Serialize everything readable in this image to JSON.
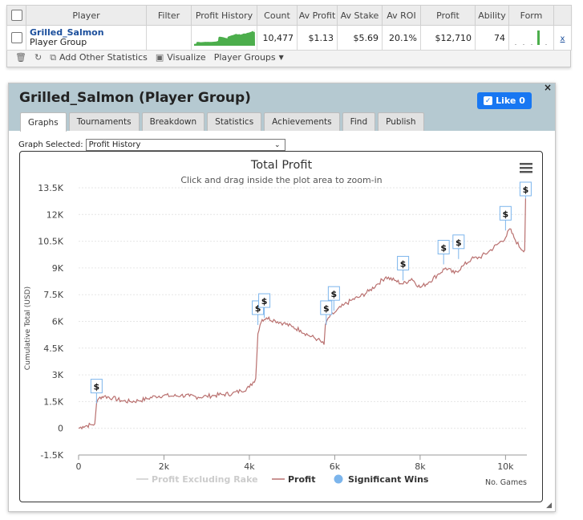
{
  "table": {
    "headers": [
      "Player",
      "Filter",
      "Profit History",
      "Count",
      "Av Profit",
      "Av Stake",
      "Av ROI",
      "Profit",
      "Ability",
      "Form"
    ],
    "row": {
      "player_name": "Grilled_Salmon",
      "player_type": "Player Group",
      "count": "10,477",
      "av_profit": "$1.13",
      "av_stake": "$5.69",
      "av_roi": "20.1%",
      "profit": "$12,710",
      "ability": "74",
      "remove": "x"
    },
    "toolbar": {
      "add_stats": "Add Other Statistics",
      "visualize": "Visualize",
      "player_groups": "Player Groups"
    }
  },
  "panel": {
    "title": "Grilled_Salmon (Player Group)",
    "like_label": "Like 0",
    "close": "×",
    "tabs": [
      "Graphs",
      "Tournaments",
      "Breakdown",
      "Statistics",
      "Achievements",
      "Find",
      "Publish"
    ],
    "active_tab": "Graphs",
    "graph_selected_label": "Graph Selected:",
    "graph_selected_value": "Profit History"
  },
  "chart_data": {
    "type": "line",
    "title": "Total Profit",
    "subtitle": "Click and drag inside the plot area to zoom-in",
    "ylabel": "Cumulative Total (USD)",
    "xlabel": "No. Games",
    "xlim": [
      0,
      10500
    ],
    "ylim": [
      -1500,
      13500
    ],
    "x_ticks": [
      0,
      2000,
      4000,
      6000,
      8000,
      10000
    ],
    "x_tick_labels": [
      "0",
      "2k",
      "4k",
      "6k",
      "8k",
      "10k"
    ],
    "y_ticks": [
      -1500,
      0,
      1500,
      3000,
      4500,
      6000,
      7500,
      9000,
      10500,
      12000,
      13500
    ],
    "y_tick_labels": [
      "-1.5K",
      "0",
      "1.5K",
      "3K",
      "4.5K",
      "6K",
      "7.5K",
      "9K",
      "10.5K",
      "12K",
      "13.5K"
    ],
    "legend": [
      "Profit Excluding Rake",
      "Profit",
      "Significant Wins"
    ],
    "legend_placement": "bottom",
    "grid": true,
    "colors": {
      "profit": "#b9706f",
      "excluding_rake": "#cccccc",
      "significant": "#7cb5ec",
      "flag_border": "#7cb5ec"
    },
    "series": [
      {
        "name": "Profit",
        "points": [
          [
            0,
            0
          ],
          [
            100,
            100
          ],
          [
            200,
            150
          ],
          [
            300,
            200
          ],
          [
            380,
            250
          ],
          [
            420,
            1400
          ],
          [
            500,
            1750
          ],
          [
            600,
            1800
          ],
          [
            800,
            1700
          ],
          [
            1000,
            1550
          ],
          [
            1200,
            1500
          ],
          [
            1400,
            1550
          ],
          [
            1600,
            1650
          ],
          [
            1800,
            1800
          ],
          [
            2000,
            1850
          ],
          [
            2200,
            1800
          ],
          [
            2400,
            1850
          ],
          [
            2600,
            1800
          ],
          [
            2800,
            1750
          ],
          [
            3000,
            1800
          ],
          [
            3200,
            1850
          ],
          [
            3400,
            1900
          ],
          [
            3600,
            1950
          ],
          [
            3800,
            2100
          ],
          [
            4000,
            2300
          ],
          [
            4150,
            2800
          ],
          [
            4200,
            5300
          ],
          [
            4250,
            5800
          ],
          [
            4300,
            6100
          ],
          [
            4400,
            6200
          ],
          [
            4600,
            6050
          ],
          [
            4800,
            5900
          ],
          [
            5000,
            5700
          ],
          [
            5200,
            5500
          ],
          [
            5400,
            5200
          ],
          [
            5600,
            5000
          ],
          [
            5750,
            4700
          ],
          [
            5780,
            5800
          ],
          [
            5850,
            6200
          ],
          [
            6000,
            6500
          ],
          [
            6200,
            6900
          ],
          [
            6400,
            7200
          ],
          [
            6600,
            7400
          ],
          [
            6800,
            7700
          ],
          [
            7000,
            8100
          ],
          [
            7200,
            8500
          ],
          [
            7400,
            8300
          ],
          [
            7600,
            8100
          ],
          [
            7800,
            8400
          ],
          [
            8000,
            7900
          ],
          [
            8200,
            8200
          ],
          [
            8400,
            8600
          ],
          [
            8600,
            9000
          ],
          [
            8800,
            8700
          ],
          [
            9000,
            9100
          ],
          [
            9200,
            9500
          ],
          [
            9400,
            9600
          ],
          [
            9600,
            9900
          ],
          [
            9800,
            10300
          ],
          [
            10000,
            10700
          ],
          [
            10100,
            11200
          ],
          [
            10200,
            10700
          ],
          [
            10350,
            10100
          ],
          [
            10450,
            10000
          ],
          [
            10470,
            12900
          ]
        ]
      }
    ],
    "significant_wins": [
      {
        "x": 420,
        "y": 1400,
        "label": "$"
      },
      {
        "x": 4200,
        "y": 5800,
        "label": "$"
      },
      {
        "x": 4350,
        "y": 6200,
        "label": "$"
      },
      {
        "x": 5800,
        "y": 5800,
        "label": "$"
      },
      {
        "x": 5980,
        "y": 6600,
        "label": "$"
      },
      {
        "x": 7600,
        "y": 8300,
        "label": "$"
      },
      {
        "x": 8550,
        "y": 9200,
        "label": "$"
      },
      {
        "x": 8900,
        "y": 9500,
        "label": "$"
      },
      {
        "x": 10000,
        "y": 11100,
        "label": "$"
      },
      {
        "x": 10470,
        "y": 12900,
        "label": "$"
      }
    ]
  }
}
